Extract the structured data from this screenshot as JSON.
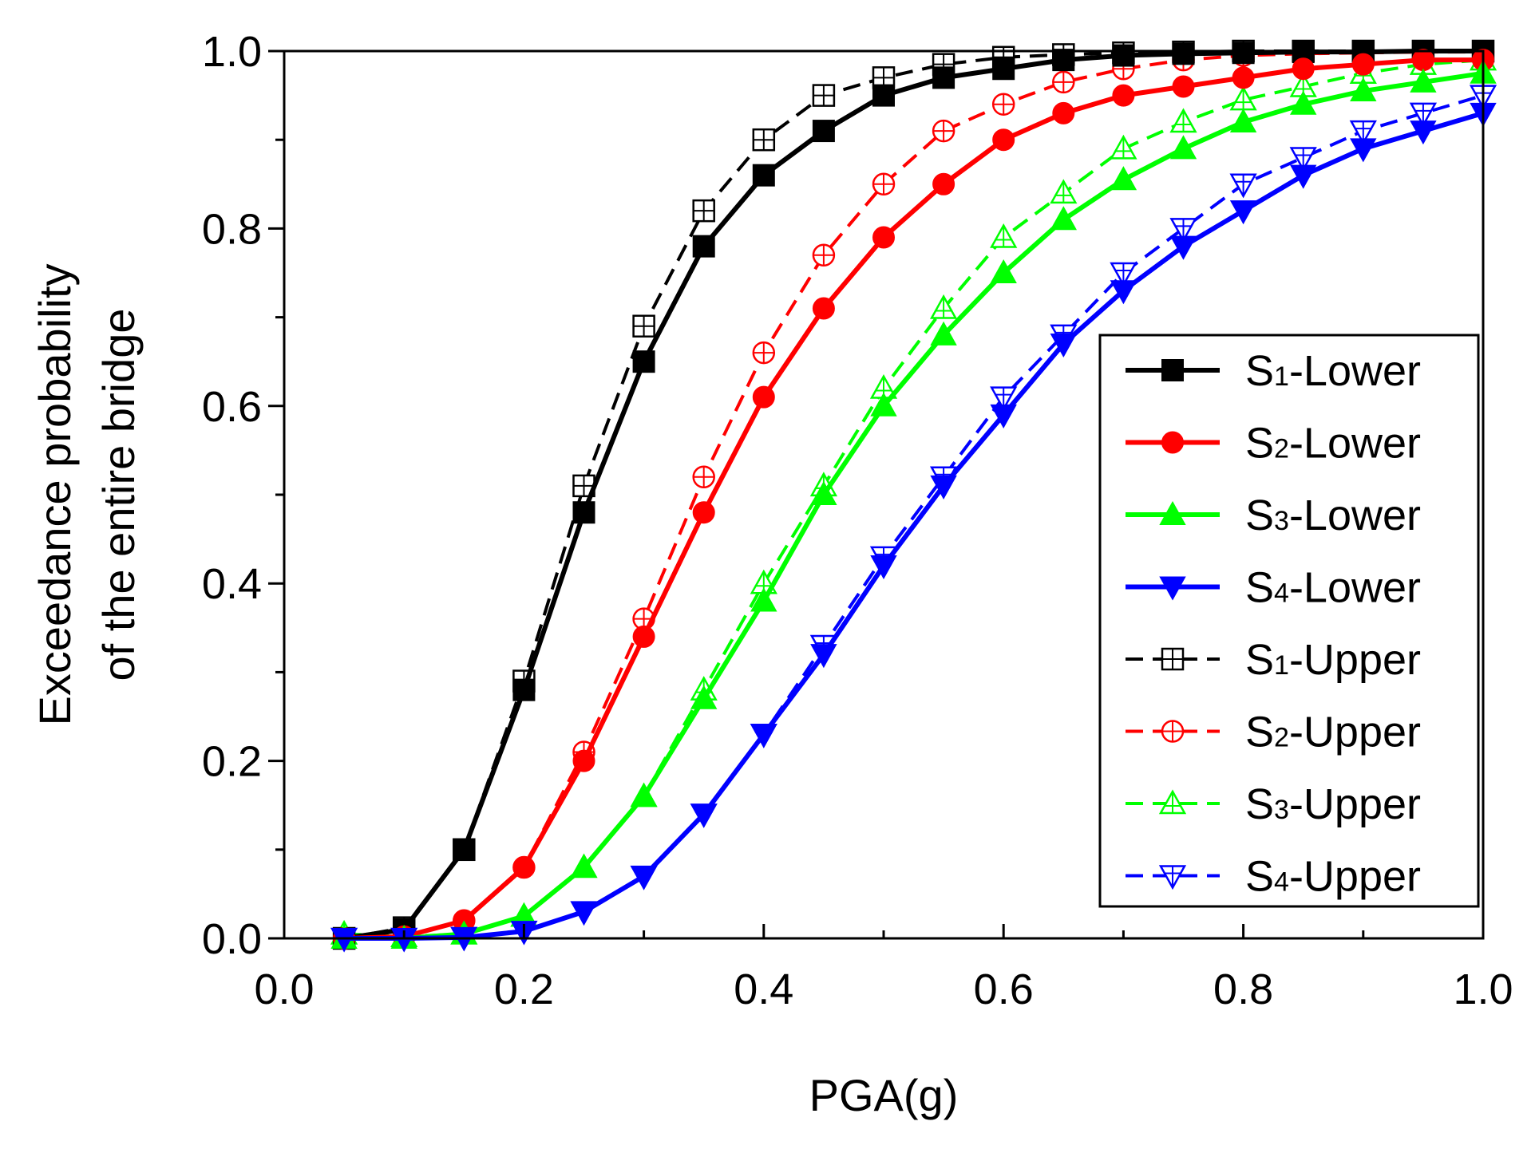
{
  "chart_data": {
    "type": "line",
    "title": "",
    "xlabel": "PGA(g)",
    "ylabel_lines": [
      "Exceedance probability",
      "of  the entire bridge"
    ],
    "xlim": [
      0.0,
      1.0
    ],
    "ylim": [
      0.0,
      1.0
    ],
    "xticks": [
      "0.0",
      "0.2",
      "0.4",
      "0.6",
      "0.8",
      "1.0"
    ],
    "yticks": [
      "0.0",
      "0.2",
      "0.4",
      "0.6",
      "0.8",
      "1.0"
    ],
    "x": [
      0.05,
      0.1,
      0.15,
      0.2,
      0.25,
      0.3,
      0.35,
      0.4,
      0.45,
      0.5,
      0.55,
      0.6,
      0.65,
      0.7,
      0.75,
      0.8,
      0.85,
      0.9,
      0.95,
      1.0
    ],
    "legend_position": "right",
    "series": [
      {
        "name": "S1-Lower",
        "label_main": "S",
        "label_sub": "1",
        "label_rest": "-Lower",
        "color": "#000000",
        "dash": "solid",
        "marker": "square-filled",
        "values": [
          0.0,
          0.01,
          0.1,
          0.28,
          0.48,
          0.65,
          0.78,
          0.86,
          0.91,
          0.95,
          0.97,
          0.98,
          0.99,
          0.995,
          0.997,
          0.998,
          0.999,
          0.999,
          1.0,
          1.0
        ]
      },
      {
        "name": "S2-Lower",
        "label_main": "S",
        "label_sub": "2",
        "label_rest": "-Lower",
        "color": "#ff0000",
        "dash": "solid",
        "marker": "circle-filled",
        "values": [
          0.0,
          0.002,
          0.02,
          0.08,
          0.2,
          0.34,
          0.48,
          0.61,
          0.71,
          0.79,
          0.85,
          0.9,
          0.93,
          0.95,
          0.96,
          0.97,
          0.98,
          0.985,
          0.99,
          0.99
        ]
      },
      {
        "name": "S3-Lower",
        "label_main": "S",
        "label_sub": "3",
        "label_rest": "-Lower",
        "color": "#00ff00",
        "dash": "solid",
        "marker": "triangle-up-filled",
        "values": [
          0.0,
          0.0,
          0.005,
          0.025,
          0.08,
          0.16,
          0.27,
          0.38,
          0.5,
          0.6,
          0.68,
          0.75,
          0.81,
          0.855,
          0.89,
          0.92,
          0.94,
          0.955,
          0.965,
          0.975
        ]
      },
      {
        "name": "S4-Lower",
        "label_main": "S",
        "label_sub": "4",
        "label_rest": "-Lower",
        "color": "#0000ff",
        "dash": "solid",
        "marker": "triangle-down-filled",
        "values": [
          0.0,
          0.0,
          0.001,
          0.008,
          0.03,
          0.07,
          0.14,
          0.23,
          0.32,
          0.42,
          0.51,
          0.59,
          0.67,
          0.73,
          0.78,
          0.82,
          0.86,
          0.89,
          0.91,
          0.93
        ]
      },
      {
        "name": "S1-Upper",
        "label_main": "S",
        "label_sub": "1",
        "label_rest": "-Upper",
        "color": "#000000",
        "dash": "dashed",
        "marker": "square-open",
        "values": [
          0.0,
          0.012,
          0.1,
          0.29,
          0.51,
          0.69,
          0.82,
          0.9,
          0.95,
          0.97,
          0.985,
          0.993,
          0.996,
          0.998,
          0.999,
          1.0,
          1.0,
          1.0,
          1.0,
          1.0
        ]
      },
      {
        "name": "S2-Upper",
        "label_main": "S",
        "label_sub": "2",
        "label_rest": "-Upper",
        "color": "#ff0000",
        "dash": "dashed",
        "marker": "circle-open",
        "values": [
          0.0,
          0.002,
          0.02,
          0.08,
          0.21,
          0.36,
          0.52,
          0.66,
          0.77,
          0.85,
          0.91,
          0.94,
          0.965,
          0.98,
          0.99,
          0.995,
          0.997,
          0.998,
          0.999,
          0.999
        ]
      },
      {
        "name": "S3-Upper",
        "label_main": "S",
        "label_sub": "3",
        "label_rest": "-Upper",
        "color": "#00ff00",
        "dash": "dashed",
        "marker": "triangle-up-open",
        "values": [
          0.005,
          0.002,
          0.005,
          0.025,
          0.08,
          0.16,
          0.28,
          0.4,
          0.51,
          0.62,
          0.71,
          0.79,
          0.84,
          0.89,
          0.92,
          0.945,
          0.96,
          0.975,
          0.985,
          0.99
        ]
      },
      {
        "name": "S4-Upper",
        "label_main": "S",
        "label_sub": "4",
        "label_rest": "-Upper",
        "color": "#0000ff",
        "dash": "dashed",
        "marker": "triangle-down-open",
        "values": [
          0.0,
          0.0,
          0.001,
          0.008,
          0.03,
          0.07,
          0.14,
          0.23,
          0.33,
          0.43,
          0.52,
          0.61,
          0.68,
          0.75,
          0.8,
          0.85,
          0.88,
          0.91,
          0.93,
          0.95
        ]
      }
    ]
  }
}
